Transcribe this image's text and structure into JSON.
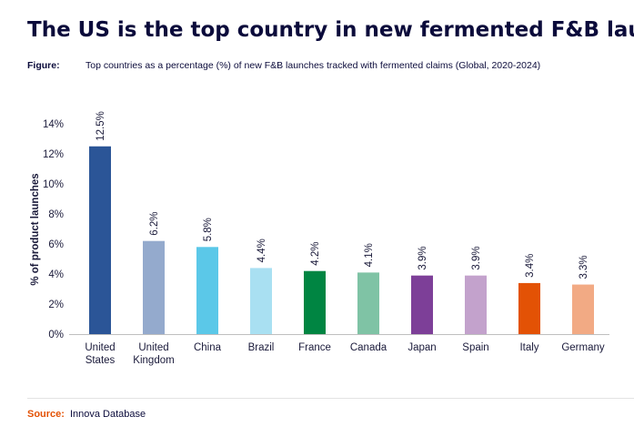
{
  "title": "The US is the top country in new fermented F&B launches",
  "figure_label": "Figure:",
  "source_label": "Source:",
  "source": "Innova Database",
  "chart_data": {
    "type": "bar",
    "subtitle": "Top countries as a percentage (%) of new F&B launches tracked with fermented claims (Global, 2020-2024)",
    "y_label": "% of product launches",
    "categories": [
      "United States",
      "United Kingdom",
      "China",
      "Brazil",
      "France",
      "Canada",
      "Japan",
      "Spain",
      "Italy",
      "Germany"
    ],
    "values": [
      12.5,
      6.2,
      5.8,
      4.4,
      4.2,
      4.1,
      3.9,
      3.9,
      3.4,
      3.3
    ],
    "value_labels": [
      "12.5%",
      "6.2%",
      "5.8%",
      "4.4%",
      "4.2%",
      "4.1%",
      "3.9%",
      "3.9%",
      "3.4%",
      "3.3%"
    ],
    "colors": [
      "#2b5597",
      "#94aacd",
      "#5bc8e8",
      "#a9e0f2",
      "#008542",
      "#7fc3a5",
      "#7d3f98",
      "#c3a2cc",
      "#e35205",
      "#f2aa84"
    ],
    "ylim": [
      0,
      14
    ],
    "yticks": [
      {
        "value": 0,
        "label": "0%"
      },
      {
        "value": 2,
        "label": "2%"
      },
      {
        "value": 4,
        "label": "4%"
      },
      {
        "value": 6,
        "label": "6%"
      },
      {
        "value": 8,
        "label": "8%"
      },
      {
        "value": 10,
        "label": "10%"
      },
      {
        "value": 12,
        "label": "12%"
      },
      {
        "value": 14,
        "label": "14%"
      }
    ],
    "grid": false
  }
}
